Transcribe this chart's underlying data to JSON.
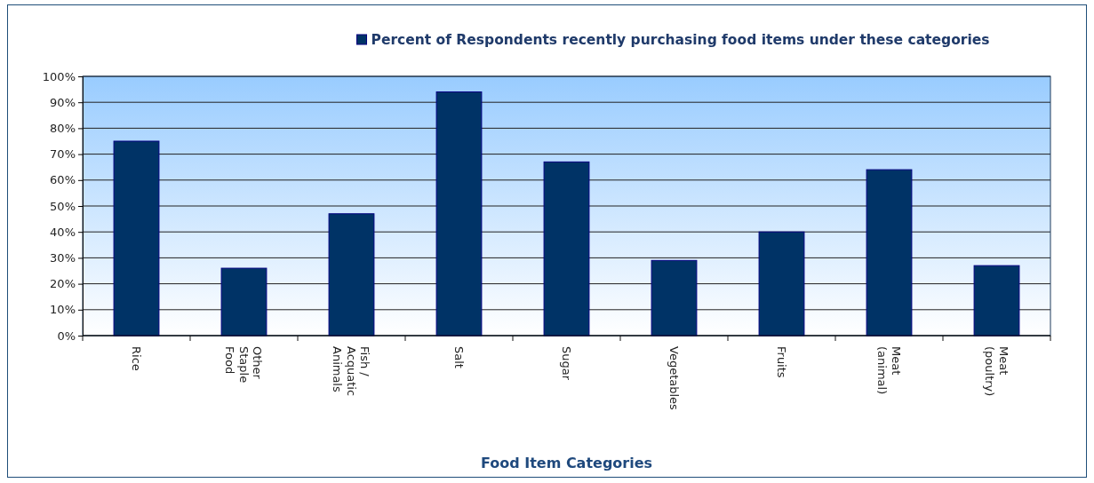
{
  "chart_data": {
    "type": "bar",
    "xlabel": "Food Item Categories",
    "categories": [
      "Rice",
      "Other Staple Food",
      "Fish / Acquatic Animals",
      "Salt",
      "Sugar",
      "Vegetables",
      "Fruits",
      "Meat (animal)",
      "Meat (poultry)"
    ],
    "series": [
      {
        "name": "Percent of Respondents recently purchasing food items under these categories",
        "color": "#003366",
        "values": [
          75,
          26,
          47,
          94,
          67,
          29,
          40,
          64,
          27
        ]
      }
    ],
    "ylim": [
      0,
      100
    ],
    "yticks": [
      {
        "value": 0,
        "label": "0%"
      },
      {
        "value": 10,
        "label": "10%"
      },
      {
        "value": 20,
        "label": "20%"
      },
      {
        "value": 30,
        "label": "30%"
      },
      {
        "value": 40,
        "label": "40%"
      },
      {
        "value": 50,
        "label": "50%"
      },
      {
        "value": 60,
        "label": "60%"
      },
      {
        "value": 70,
        "label": "70%"
      },
      {
        "value": 80,
        "label": "80%"
      },
      {
        "value": 90,
        "label": "90%"
      },
      {
        "value": 100,
        "label": "100%"
      }
    ],
    "grid": "y",
    "legend": "top"
  }
}
